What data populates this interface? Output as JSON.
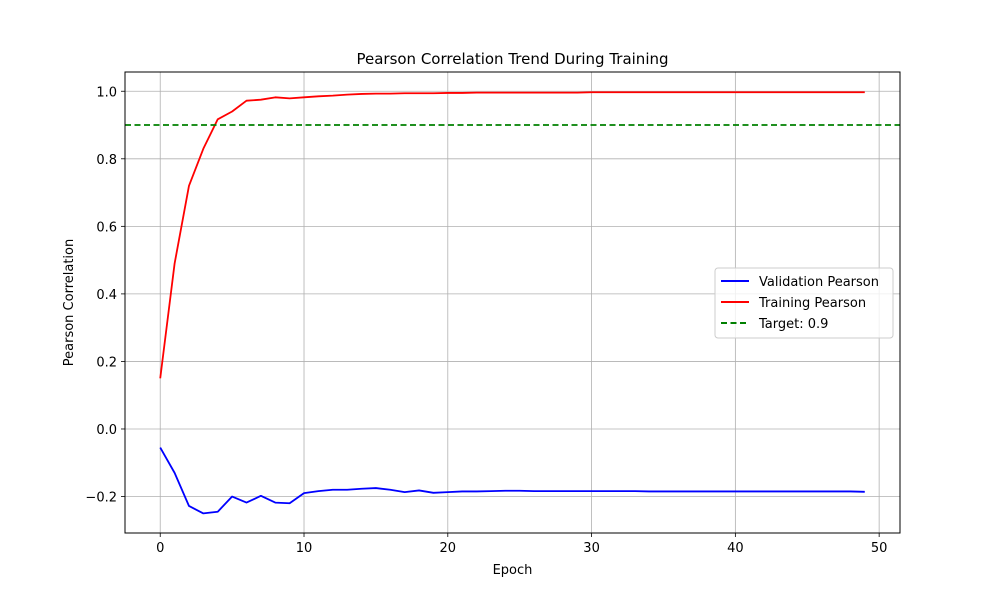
{
  "chart_data": {
    "type": "line",
    "title": "Pearson Correlation Trend During Training",
    "xlabel": "Epoch",
    "ylabel": "Pearson Correlation",
    "xlim": [
      -2.45,
      51.45
    ],
    "ylim": [
      -0.308,
      1.057
    ],
    "x_ticks": [
      0,
      10,
      20,
      30,
      40,
      50
    ],
    "y_ticks": [
      -0.2,
      0.0,
      0.2,
      0.4,
      0.6,
      0.8,
      1.0
    ],
    "x_tick_labels": [
      "0",
      "10",
      "20",
      "30",
      "40",
      "50"
    ],
    "y_tick_labels": [
      "−0.2",
      "0.0",
      "0.2",
      "0.4",
      "0.6",
      "0.8",
      "1.0"
    ],
    "grid": true,
    "legend_position": "center-right",
    "x": [
      0,
      1,
      2,
      3,
      4,
      5,
      6,
      7,
      8,
      9,
      10,
      11,
      12,
      13,
      14,
      15,
      16,
      17,
      18,
      19,
      20,
      21,
      22,
      23,
      24,
      25,
      26,
      27,
      28,
      29,
      30,
      31,
      32,
      33,
      34,
      35,
      36,
      37,
      38,
      39,
      40,
      41,
      42,
      43,
      44,
      45,
      46,
      47,
      48,
      49
    ],
    "series": [
      {
        "name": "Validation Pearson",
        "color": "#0000ff",
        "style": "solid",
        "values": [
          -0.055,
          -0.13,
          -0.228,
          -0.25,
          -0.245,
          -0.2,
          -0.218,
          -0.198,
          -0.218,
          -0.22,
          -0.19,
          -0.184,
          -0.18,
          -0.18,
          -0.177,
          -0.175,
          -0.18,
          -0.187,
          -0.182,
          -0.189,
          -0.187,
          -0.185,
          -0.185,
          -0.184,
          -0.183,
          -0.183,
          -0.184,
          -0.184,
          -0.184,
          -0.184,
          -0.184,
          -0.184,
          -0.184,
          -0.184,
          -0.185,
          -0.185,
          -0.185,
          -0.185,
          -0.185,
          -0.185,
          -0.185,
          -0.185,
          -0.185,
          -0.185,
          -0.185,
          -0.185,
          -0.185,
          -0.185,
          -0.185,
          -0.186
        ]
      },
      {
        "name": "Training Pearson",
        "color": "#ff0000",
        "style": "solid",
        "values": [
          0.15,
          0.49,
          0.72,
          0.83,
          0.917,
          0.94,
          0.972,
          0.975,
          0.982,
          0.979,
          0.982,
          0.985,
          0.987,
          0.99,
          0.992,
          0.993,
          0.993,
          0.994,
          0.994,
          0.994,
          0.995,
          0.995,
          0.996,
          0.996,
          0.996,
          0.996,
          0.996,
          0.996,
          0.996,
          0.996,
          0.997,
          0.997,
          0.997,
          0.997,
          0.997,
          0.997,
          0.997,
          0.997,
          0.997,
          0.997,
          0.997,
          0.997,
          0.997,
          0.997,
          0.997,
          0.997,
          0.997,
          0.997,
          0.997,
          0.997
        ]
      }
    ],
    "reference_line": {
      "name": "Target: 0.9",
      "value": 0.9,
      "color": "#008000",
      "style": "dashed"
    }
  }
}
